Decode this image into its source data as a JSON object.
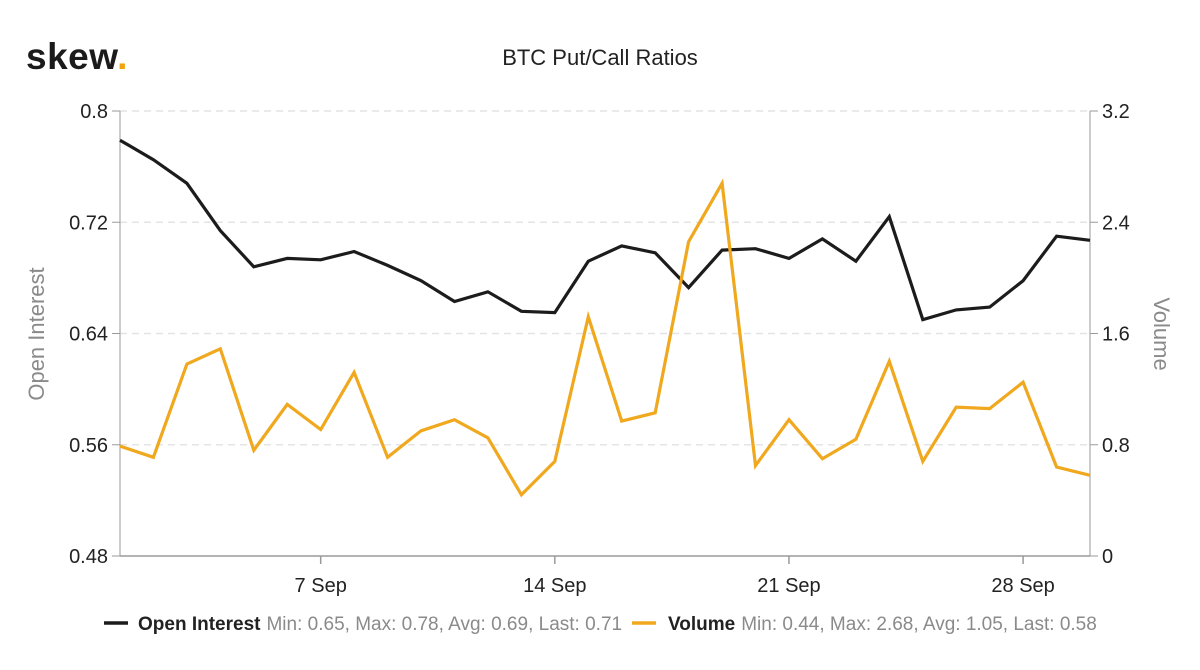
{
  "brand": {
    "name": "skew",
    "dot": "."
  },
  "chart_data": {
    "type": "line",
    "title": "BTC Put/Call Ratios",
    "x_ticks": [
      "7 Sep",
      "14 Sep",
      "21 Sep",
      "28 Sep"
    ],
    "x_tick_days": [
      7,
      14,
      21,
      28
    ],
    "x_range": [
      1,
      30
    ],
    "y_left": {
      "label": "Open Interest",
      "range": [
        0.48,
        0.8
      ],
      "ticks": [
        "0.8",
        "0.72",
        "0.64",
        "0.56",
        "0.48"
      ],
      "tick_values": [
        0.8,
        0.72,
        0.64,
        0.56,
        0.48
      ]
    },
    "y_right": {
      "label": "Volume",
      "range": [
        0,
        3.2
      ],
      "ticks": [
        "3.2",
        "2.4",
        "1.6",
        "0.8",
        "0"
      ],
      "tick_values": [
        3.2,
        2.4,
        1.6,
        0.8,
        0
      ]
    },
    "grid": true,
    "legend_position": "bottom",
    "series": [
      {
        "name": "Open Interest",
        "axis": "left",
        "color": "#1c1c1c",
        "stats": "Min: 0.65, Max: 0.78, Avg: 0.69, Last: 0.71",
        "x": [
          1,
          2,
          3,
          4,
          5,
          6,
          7,
          8,
          9,
          10,
          11,
          12,
          13,
          14,
          15,
          16,
          17,
          18,
          19,
          20,
          21,
          22,
          23,
          24,
          25,
          26,
          27,
          28,
          29,
          30
        ],
        "values": [
          0.779,
          0.765,
          0.748,
          0.714,
          0.688,
          0.694,
          0.693,
          0.699,
          0.689,
          0.678,
          0.663,
          0.67,
          0.656,
          0.655,
          0.692,
          0.703,
          0.698,
          0.673,
          0.7,
          0.701,
          0.694,
          0.708,
          0.692,
          0.724,
          0.65,
          0.657,
          0.659,
          0.678,
          0.71,
          0.707
        ]
      },
      {
        "name": "Volume",
        "axis": "right",
        "color": "#f0a81e",
        "stats": "Min: 0.44, Max: 2.68, Avg: 1.05, Last: 0.58",
        "x": [
          1,
          2,
          3,
          4,
          5,
          6,
          7,
          8,
          9,
          10,
          11,
          12,
          13,
          14,
          15,
          16,
          17,
          18,
          19,
          20,
          21,
          22,
          23,
          24,
          25,
          26,
          27,
          28,
          29,
          30
        ],
        "values": [
          0.79,
          0.71,
          1.38,
          1.49,
          0.76,
          1.09,
          0.91,
          1.32,
          0.71,
          0.9,
          0.98,
          0.85,
          0.44,
          0.68,
          1.72,
          0.97,
          1.03,
          2.26,
          2.68,
          0.65,
          0.98,
          0.7,
          0.84,
          1.4,
          0.68,
          1.07,
          1.06,
          1.25,
          0.64,
          0.58
        ]
      }
    ]
  }
}
